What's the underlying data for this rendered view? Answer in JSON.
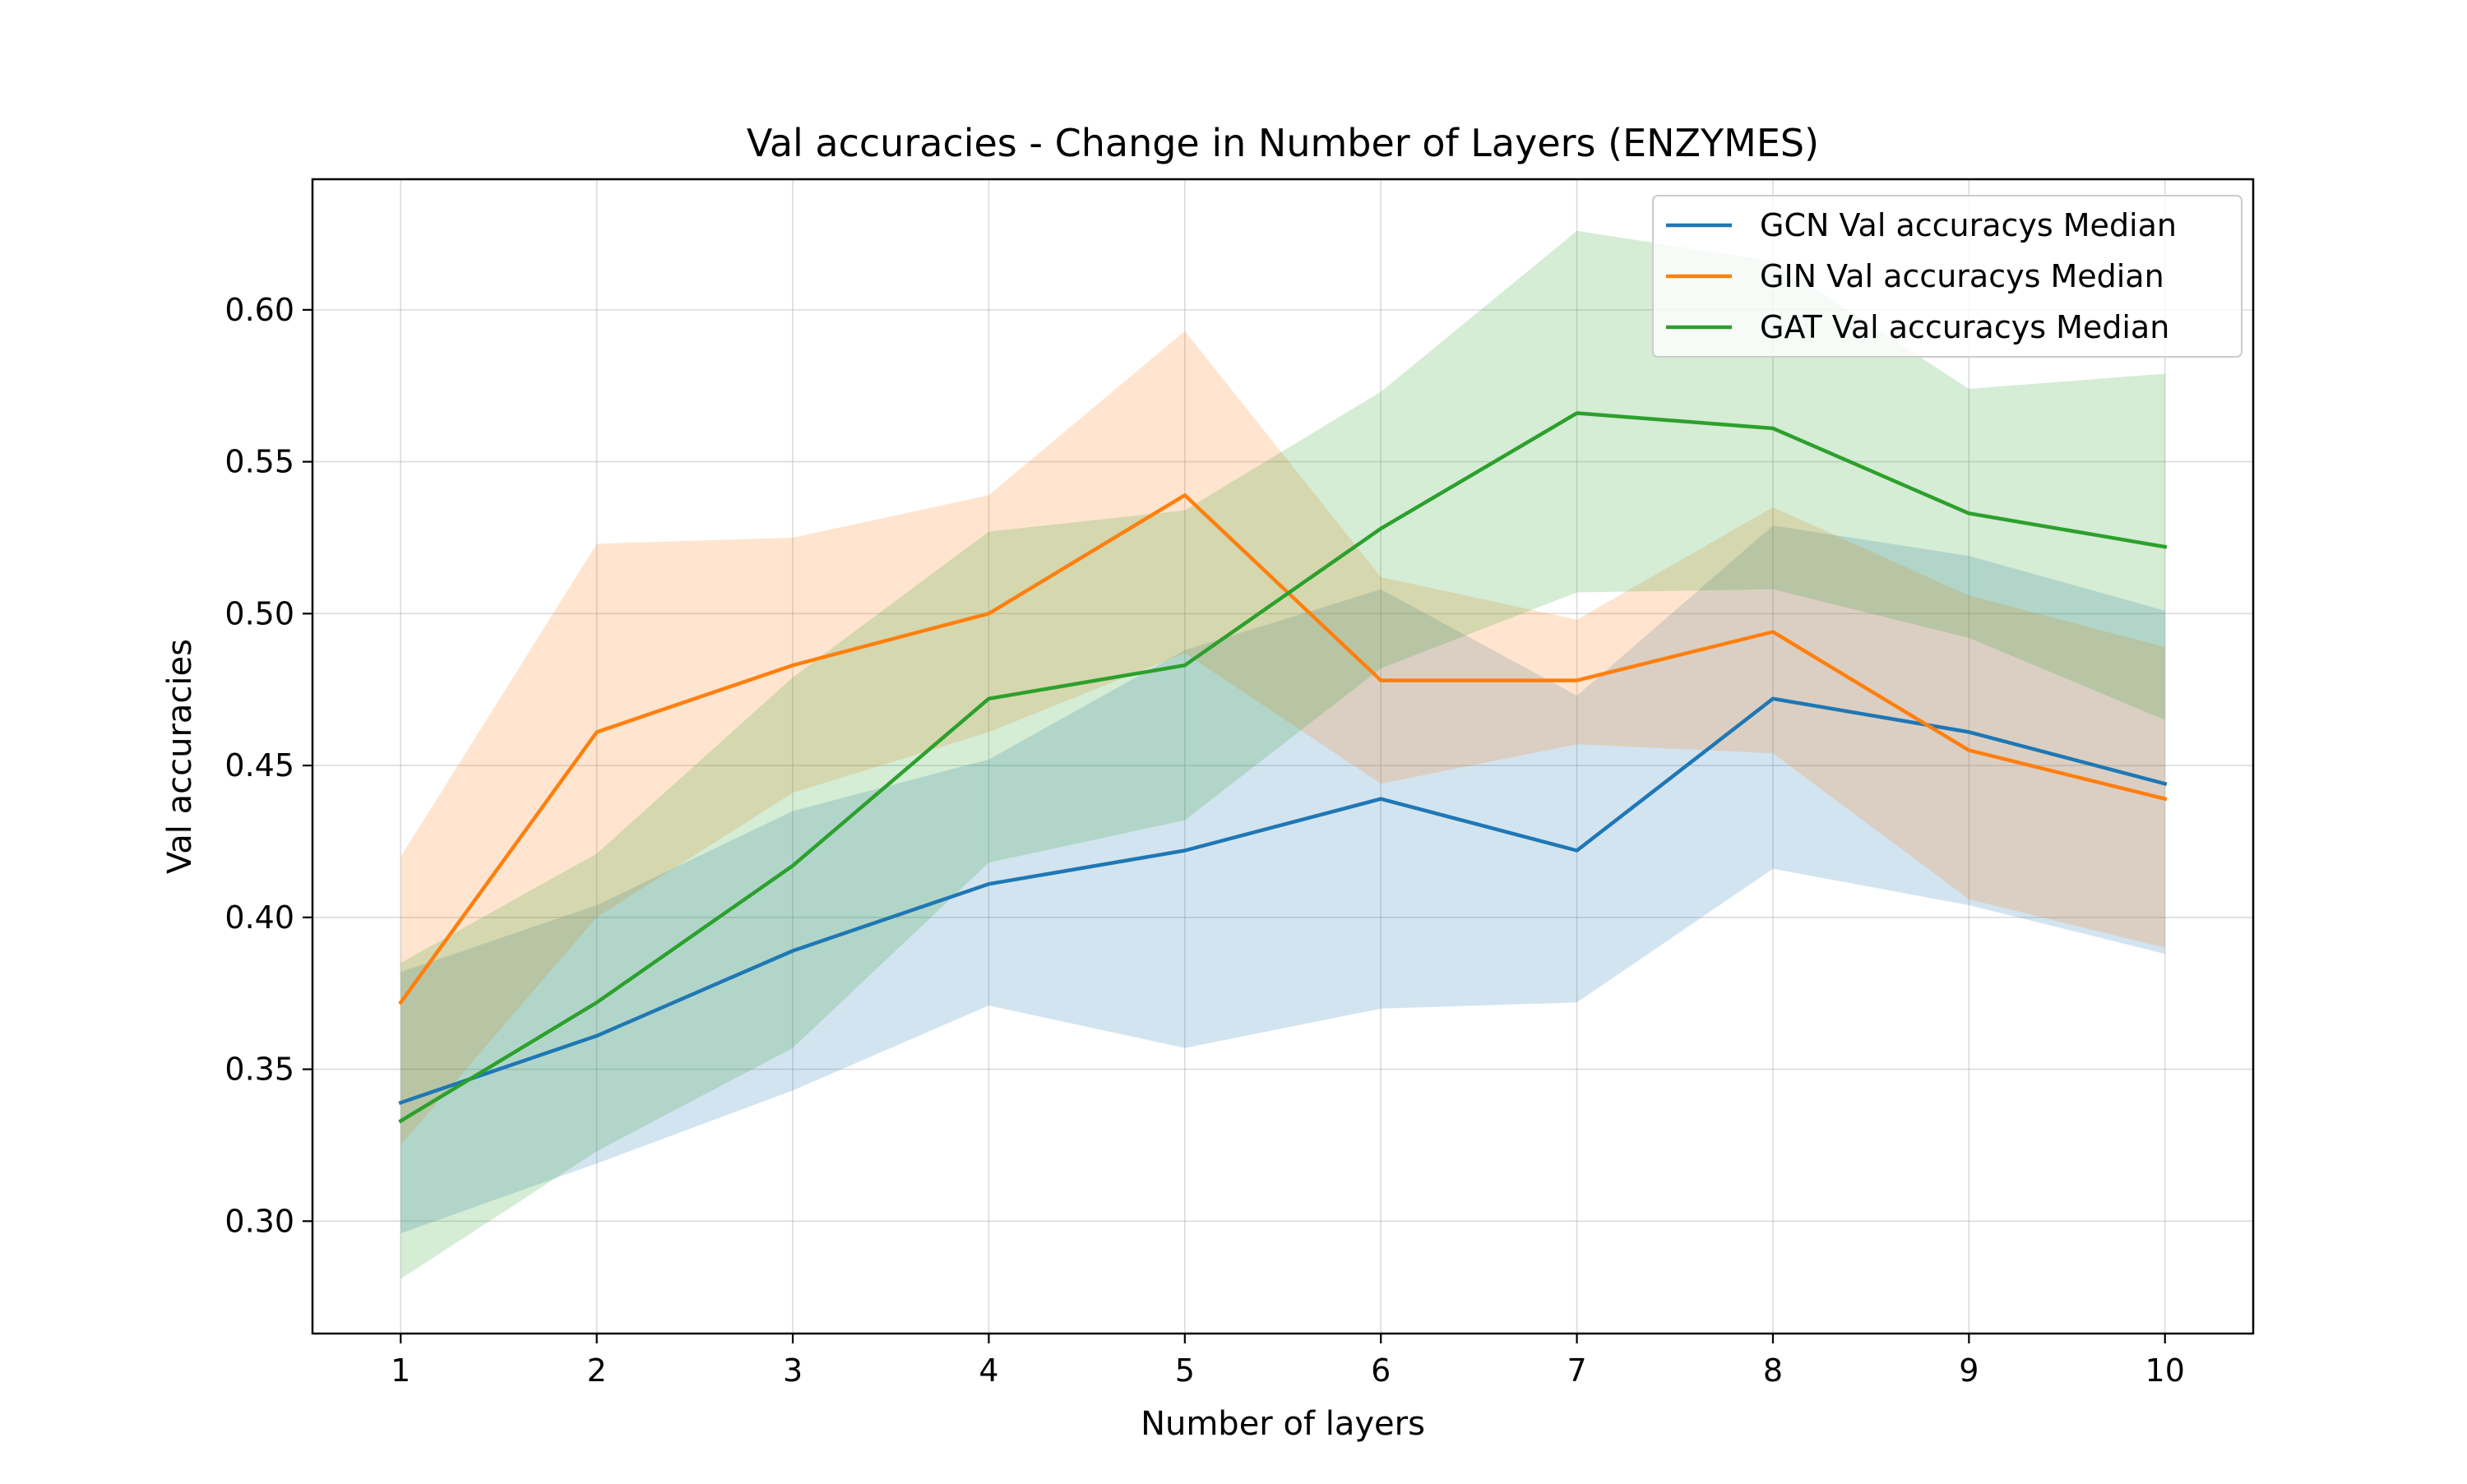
{
  "chart_data": {
    "type": "line",
    "title": "Val accuracies - Change in Number of Layers (ENZYMES)",
    "xlabel": "Number of layers",
    "ylabel": "Val accuracies",
    "x": [
      1,
      2,
      3,
      4,
      5,
      6,
      7,
      8,
      9,
      10
    ],
    "xlim": [
      0.55,
      10.45
    ],
    "ylim": [
      0.263,
      0.643
    ],
    "x_ticks": [
      1,
      2,
      3,
      4,
      5,
      6,
      7,
      8,
      9,
      10
    ],
    "x_tick_labels": [
      "1",
      "2",
      "3",
      "4",
      "5",
      "6",
      "7",
      "8",
      "9",
      "10"
    ],
    "y_ticks": [
      0.3,
      0.35,
      0.4,
      0.45,
      0.5,
      0.55,
      0.6
    ],
    "y_tick_labels": [
      "0.30",
      "0.35",
      "0.40",
      "0.45",
      "0.50",
      "0.55",
      "0.60"
    ],
    "grid": true,
    "legend_position": "top-right",
    "series": [
      {
        "name": "GCN Val accuracys Median",
        "color": "#1f77b4",
        "values": [
          0.339,
          0.361,
          0.389,
          0.411,
          0.422,
          0.439,
          0.422,
          0.472,
          0.461,
          0.444
        ],
        "band_lower": [
          0.296,
          0.319,
          0.343,
          0.371,
          0.357,
          0.37,
          0.372,
          0.416,
          0.404,
          0.388
        ],
        "band_upper": [
          0.382,
          0.404,
          0.435,
          0.452,
          0.488,
          0.508,
          0.473,
          0.529,
          0.519,
          0.501
        ]
      },
      {
        "name": "GIN Val accuracys Median",
        "color": "#ff7f0e",
        "values": [
          0.372,
          0.461,
          0.483,
          0.5,
          0.539,
          0.478,
          0.478,
          0.494,
          0.455,
          0.439
        ],
        "band_lower": [
          0.325,
          0.4,
          0.441,
          0.461,
          0.487,
          0.444,
          0.457,
          0.454,
          0.406,
          0.39
        ],
        "band_upper": [
          0.42,
          0.523,
          0.525,
          0.539,
          0.593,
          0.512,
          0.498,
          0.535,
          0.506,
          0.489
        ]
      },
      {
        "name": "GAT Val accuracys Median",
        "color": "#2ca02c",
        "values": [
          0.333,
          0.372,
          0.417,
          0.472,
          0.483,
          0.528,
          0.566,
          0.561,
          0.533,
          0.522
        ],
        "band_lower": [
          0.281,
          0.323,
          0.357,
          0.418,
          0.432,
          0.482,
          0.507,
          0.508,
          0.492,
          0.465
        ],
        "band_upper": [
          0.385,
          0.421,
          0.479,
          0.527,
          0.534,
          0.573,
          0.626,
          0.616,
          0.574,
          0.579
        ]
      }
    ]
  }
}
